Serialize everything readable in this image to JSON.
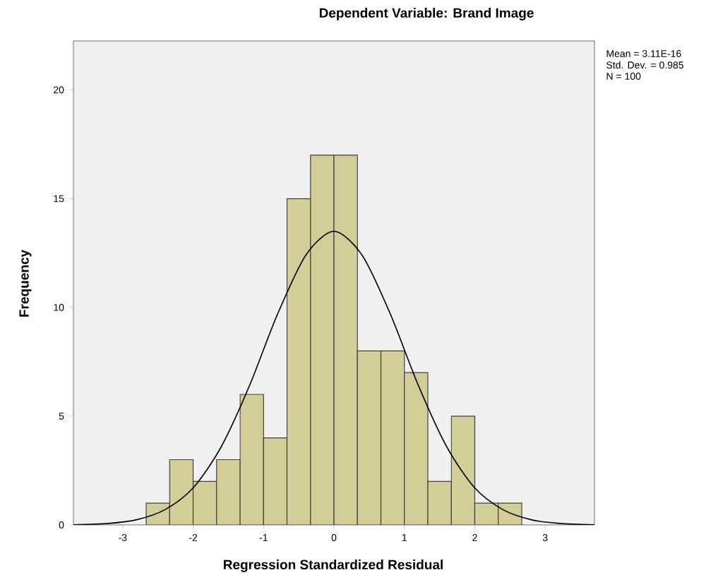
{
  "chart_data": {
    "type": "histogram",
    "title": "Dependent Variable: Brand Image",
    "xlabel": "Regression Standardized Residual",
    "ylabel": "Frequency",
    "bins": [
      -2.667,
      -2.333,
      -2.0,
      -1.667,
      -1.333,
      -1.0,
      -0.667,
      -0.333,
      0.0,
      0.333,
      0.667,
      1.0,
      1.333,
      1.667,
      2.0,
      2.333,
      2.667
    ],
    "values": [
      1,
      3,
      2,
      3,
      6,
      4,
      15,
      17,
      17,
      8,
      8,
      7,
      2,
      5,
      1,
      1
    ],
    "color": "#d3ce97",
    "series": [
      {
        "type": "line",
        "color": "#000000",
        "x": [
          -3.7,
          -3.2,
          -2.8,
          -2.4,
          -2.0,
          -1.6,
          -1.2,
          -0.8,
          -0.4,
          0.0,
          0.4,
          0.8,
          1.2,
          1.6,
          2.0,
          2.4,
          2.8,
          3.2,
          3.7
        ],
        "values": [
          0.01,
          0.07,
          0.24,
          0.7,
          1.7,
          3.6,
          6.4,
          9.7,
          12.4,
          13.5,
          12.4,
          9.7,
          6.4,
          3.6,
          1.7,
          0.7,
          0.24,
          0.07,
          0.01
        ]
      }
    ],
    "xlim": [
      -3.7,
      3.7
    ],
    "ylim": [
      0,
      22.25
    ],
    "xticks": [
      -3,
      -2,
      -1,
      0,
      1,
      2,
      3
    ],
    "yticks": [
      0,
      5,
      10,
      15,
      20
    ],
    "grid": false,
    "marker": "none",
    "line_style": "solid",
    "annotations": [
      "Mean = 3.11E-16",
      "Std. Dev. = 0.985",
      "N = 100"
    ]
  }
}
